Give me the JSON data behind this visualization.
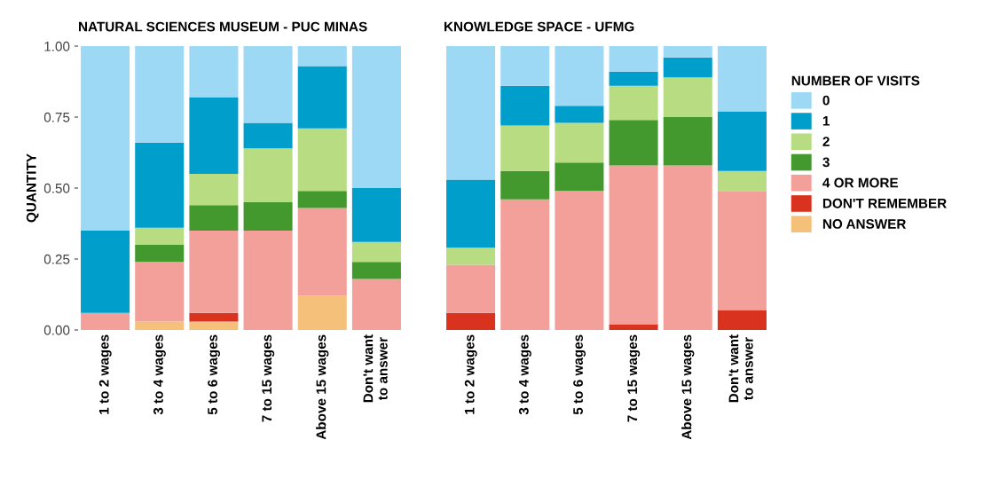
{
  "chart_data": [
    {
      "type": "bar",
      "stacked": true,
      "title": "NATURAL SCIENCES MUSEUM - PUC MINAS",
      "ylabel": "QUANTITY",
      "categories": [
        "1 to 2 wages",
        "3 to 4 wages",
        "5 to 6 wages",
        "7 to 15 wages",
        "Above 15 wages",
        "Don't want\nto answer"
      ],
      "ylim": [
        0,
        1
      ],
      "yticks": [
        {
          "value": 0,
          "label": "0.00"
        },
        {
          "value": 0.25,
          "label": "0.25"
        },
        {
          "value": 0.5,
          "label": "0.50"
        },
        {
          "value": 0.75,
          "label": "0.75"
        },
        {
          "value": 1,
          "label": "1.00"
        }
      ],
      "grid": false,
      "series": [
        {
          "color": "#f4c07a",
          "values": [
            0,
            0.03,
            0.03,
            0,
            0.12,
            0
          ]
        },
        {
          "color": "#d9331f",
          "values": [
            0,
            0,
            0.03,
            0,
            0,
            0
          ]
        },
        {
          "color": "#f4a09a",
          "values": [
            0.06,
            0.21,
            0.29,
            0.35,
            0.31,
            0.18
          ]
        },
        {
          "color": "#43992e",
          "values": [
            0,
            0.06,
            0.09,
            0.1,
            0.06,
            0.06
          ]
        },
        {
          "color": "#b7dc82",
          "values": [
            0,
            0.06,
            0.11,
            0.19,
            0.22,
            0.07
          ]
        },
        {
          "color": "#009ecb",
          "values": [
            0.29,
            0.3,
            0.27,
            0.09,
            0.22,
            0.19
          ]
        },
        {
          "color": "#9dd9f5",
          "values": [
            0.65,
            0.34,
            0.18,
            0.27,
            0.07,
            0.5
          ]
        }
      ]
    },
    {
      "type": "bar",
      "stacked": true,
      "title": "KNOWLEDGE SPACE - UFMG",
      "legend_title": "NUMBER OF VISITS",
      "categories": [
        "1 to 2 wages",
        "3 to 4 wages",
        "5 to 6 wages",
        "7 to 15 wages",
        "Above 15 wages",
        "Don't want\nto answer"
      ],
      "ylim": [
        0,
        1
      ],
      "tick_labels": "x",
      "legend": "right",
      "grid": false,
      "series": [
        {
          "name": "NO ANSWER",
          "color": "#f4c07a",
          "values": [
            0,
            0,
            0,
            0,
            0,
            0
          ]
        },
        {
          "name": "DON'T REMEMBER",
          "color": "#d9331f",
          "values": [
            0.06,
            0,
            0,
            0.02,
            0,
            0.07
          ]
        },
        {
          "name": "4 OR MORE",
          "color": "#f4a09a",
          "values": [
            0.17,
            0.46,
            0.49,
            0.56,
            0.58,
            0.42
          ]
        },
        {
          "name": "3",
          "color": "#43992e",
          "values": [
            0,
            0.1,
            0.1,
            0.16,
            0.17,
            0
          ]
        },
        {
          "name": "2",
          "color": "#b7dc82",
          "values": [
            0.06,
            0.16,
            0.14,
            0.12,
            0.14,
            0.07
          ]
        },
        {
          "name": "1",
          "color": "#009ecb",
          "values": [
            0.24,
            0.14,
            0.06,
            0.05,
            0.07,
            0.21
          ]
        },
        {
          "name": "0",
          "color": "#9dd9f5",
          "values": [
            0.47,
            0.14,
            0.21,
            0.09,
            0.04,
            0.23
          ]
        }
      ]
    }
  ]
}
